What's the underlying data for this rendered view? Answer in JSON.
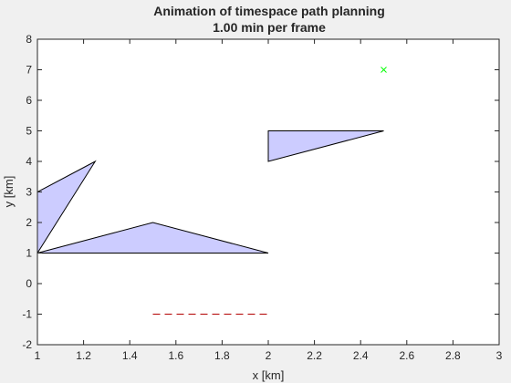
{
  "chart_data": {
    "type": "scatter",
    "title": "Animation of timespace path planning",
    "subtitle": "1.00 min per frame",
    "xlabel": "x [km]",
    "ylabel": "y [km]",
    "xlim": [
      1,
      3
    ],
    "ylim": [
      -2,
      8
    ],
    "xticks": [
      1,
      1.2,
      1.4,
      1.6,
      1.8,
      2,
      2.2,
      2.4,
      2.6,
      2.8,
      3
    ],
    "yticks": [
      -2,
      -1,
      0,
      1,
      2,
      3,
      4,
      5,
      6,
      7,
      8
    ],
    "x_tick_labels": [
      "1",
      "1.2",
      "1.4",
      "1.6",
      "1.8",
      "2",
      "2.2",
      "2.4",
      "2.6",
      "2.8",
      "3"
    ],
    "y_tick_labels": [
      "-2",
      "-1",
      "0",
      "1",
      "2",
      "3",
      "4",
      "5",
      "6",
      "7",
      "8"
    ],
    "grid": false,
    "obstacles": [
      {
        "vertices": [
          [
            1,
            1
          ],
          [
            1,
            3
          ],
          [
            1.25,
            4
          ]
        ]
      },
      {
        "vertices": [
          [
            1,
            1
          ],
          [
            1.5,
            2
          ],
          [
            2,
            1
          ]
        ]
      },
      {
        "vertices": [
          [
            2,
            4
          ],
          [
            2,
            5
          ],
          [
            2.5,
            5
          ]
        ]
      }
    ],
    "goal": {
      "x": 2.5,
      "y": 7,
      "marker": "x"
    },
    "dashed_line": {
      "x": [
        1.5,
        2
      ],
      "y": [
        -1,
        -1
      ]
    },
    "colors": {
      "obstacle_fill": "#ccccff",
      "obstacle_edge": "#000000",
      "goal": "#00ff00",
      "dashed_line": "#b30000",
      "axes_bg": "#ffffff",
      "figure_bg": "#f0f0f0"
    }
  }
}
